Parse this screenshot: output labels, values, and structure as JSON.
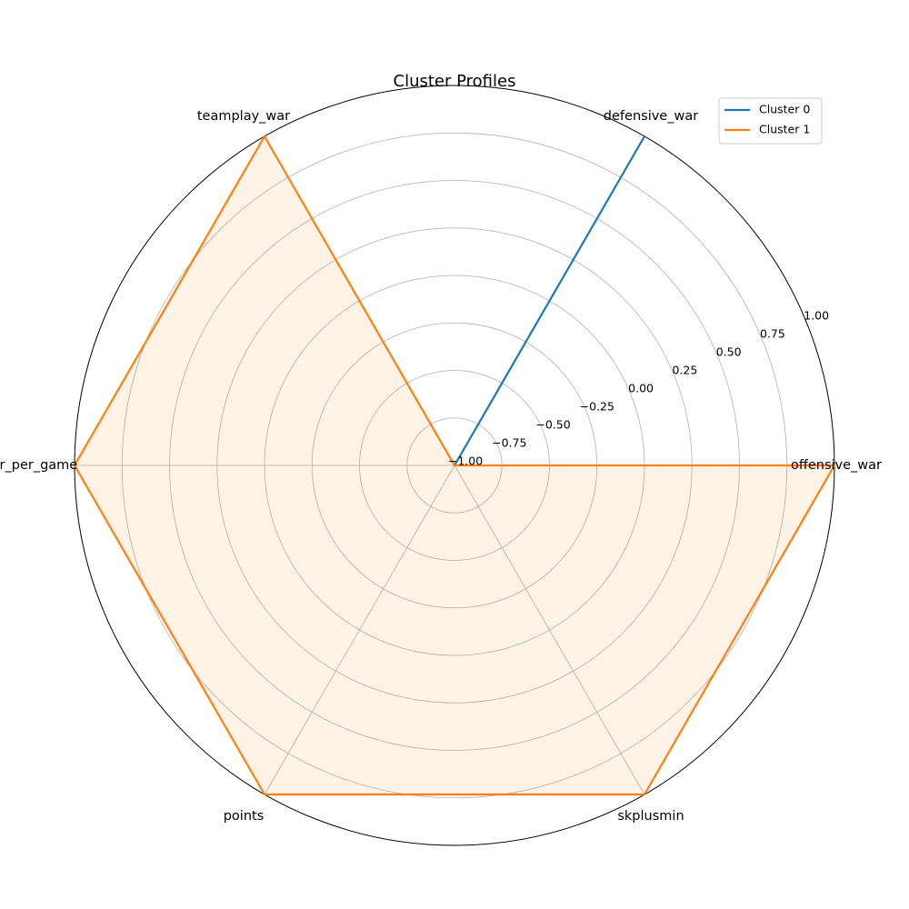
{
  "chart_data": {
    "type": "radar",
    "title": "Cluster Profiles",
    "axes": [
      "offensive_war",
      "defensive_war",
      "teamplay_war",
      "war_per_game",
      "points",
      "skplusmin"
    ],
    "rlim": [
      -1.0,
      1.0
    ],
    "rticks": [
      -1.0,
      -0.75,
      -0.5,
      -0.25,
      0.0,
      0.25,
      0.5,
      0.75,
      1.0
    ],
    "rtick_labels": [
      "−1.00",
      "−0.75",
      "−0.50",
      "−0.25",
      "0.00",
      "0.25",
      "0.50",
      "0.75",
      "1.00"
    ],
    "grid": true,
    "legend_position": "top-right",
    "series": [
      {
        "name": "Cluster 0",
        "values": [
          -1.0,
          1.0,
          -1.0,
          -1.0,
          -1.0,
          -1.0
        ],
        "color": "#1f77b4"
      },
      {
        "name": "Cluster 1",
        "values": [
          1.0,
          -1.0,
          1.0,
          1.0,
          1.0,
          1.0
        ],
        "color": "#ff7f0e"
      }
    ]
  }
}
